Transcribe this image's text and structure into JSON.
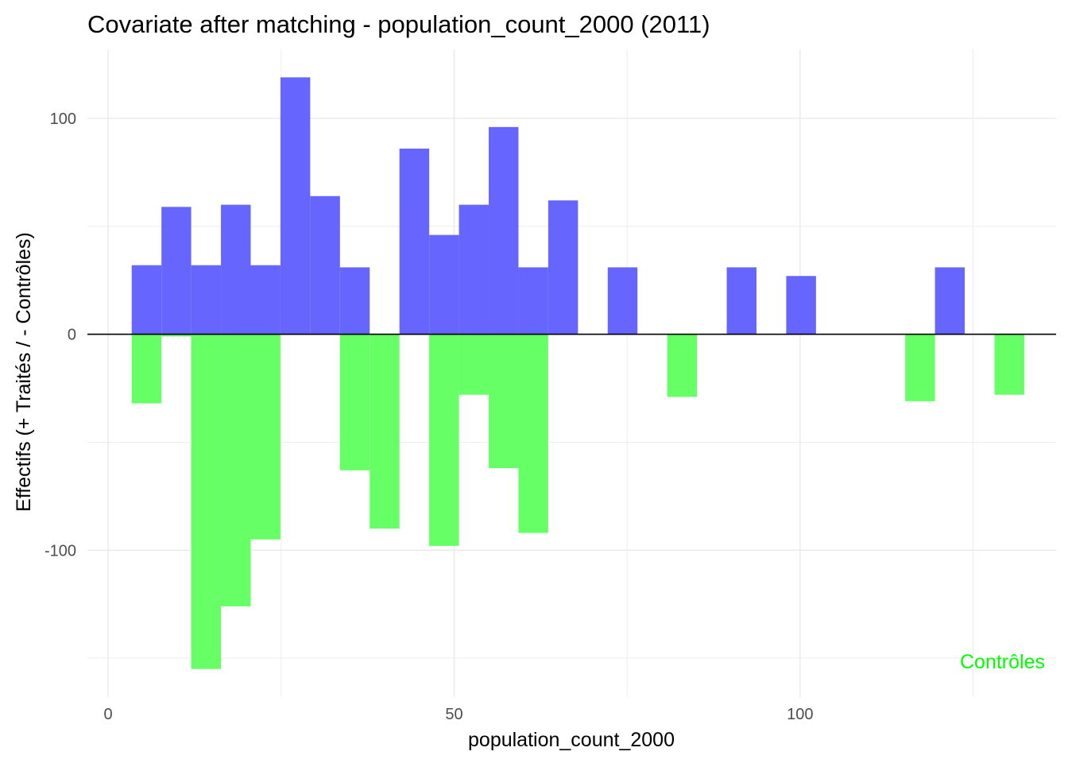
{
  "chart_data": {
    "type": "bar",
    "title": "Covariate after matching - population_count_2000 (2011)",
    "xlabel": "population_count_2000",
    "ylabel": "Effectifs (+ Traités / - Contrôles)",
    "xlim": [
      -3,
      137
    ],
    "ylim": [
      -168,
      132
    ],
    "x_ticks": [
      0,
      50,
      100
    ],
    "y_ticks": [
      -100,
      0,
      100
    ],
    "bin_width": 4.3,
    "grid": true,
    "colors": {
      "treated": "#6666ff",
      "controls": "#66ff66",
      "annotation": "#00ff00"
    },
    "annotation": "Contrôles",
    "series": [
      {
        "name": "Traités",
        "values": [
          [
            3.4,
            32
          ],
          [
            7.7,
            59
          ],
          [
            12.0,
            32
          ],
          [
            16.3,
            60
          ],
          [
            20.6,
            32
          ],
          [
            24.9,
            119
          ],
          [
            29.2,
            64
          ],
          [
            33.5,
            31
          ],
          [
            42.1,
            86
          ],
          [
            46.4,
            46
          ],
          [
            50.7,
            60
          ],
          [
            55.0,
            96
          ],
          [
            59.3,
            31
          ],
          [
            63.6,
            62
          ],
          [
            72.2,
            31
          ],
          [
            89.4,
            31
          ],
          [
            98.0,
            27
          ],
          [
            119.5,
            31
          ]
        ]
      },
      {
        "name": "Contrôles",
        "values": [
          [
            3.4,
            -32
          ],
          [
            7.7,
            -1
          ],
          [
            12.0,
            -155
          ],
          [
            16.3,
            -126
          ],
          [
            20.6,
            -95
          ],
          [
            33.5,
            -63
          ],
          [
            37.8,
            -90
          ],
          [
            46.4,
            -98
          ],
          [
            50.7,
            -28
          ],
          [
            55.0,
            -62
          ],
          [
            59.3,
            -92
          ],
          [
            80.8,
            -29
          ],
          [
            115.2,
            -31
          ],
          [
            128.1,
            -28
          ]
        ]
      }
    ]
  }
}
